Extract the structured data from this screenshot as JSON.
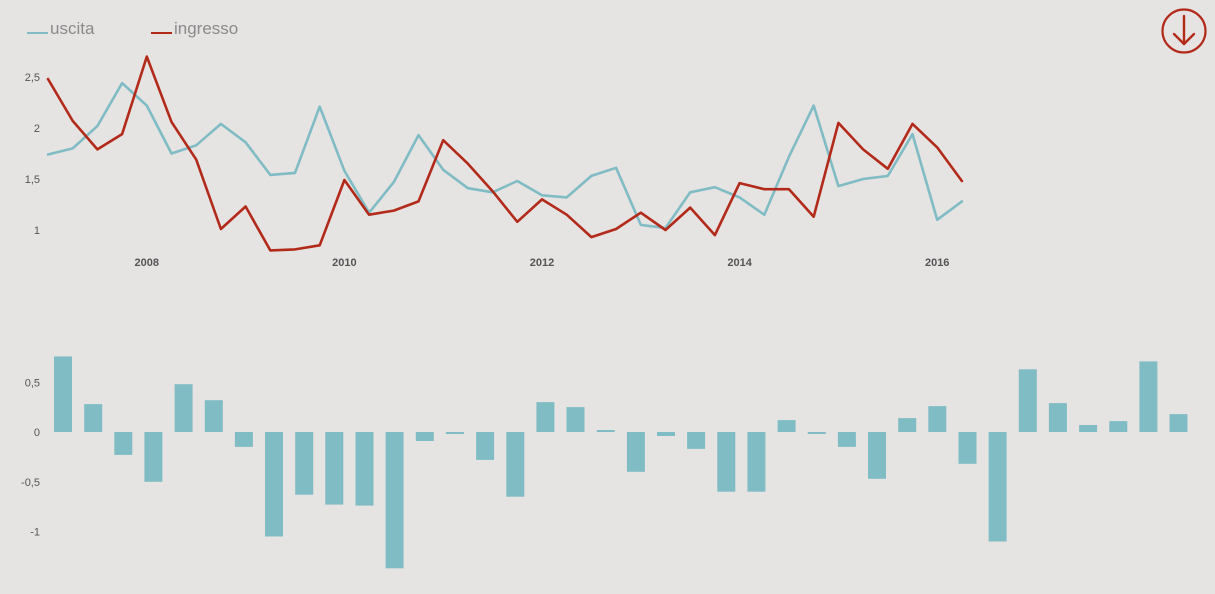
{
  "colors": {
    "uscita": "#80bcc4",
    "ingresso": "#b22a1a",
    "bar": "#80bcc4",
    "download": "#b22a1a"
  },
  "download_icon": "arrow-down-circle-icon",
  "chart_data": [
    {
      "type": "line",
      "legend": {
        "placement": "top-left"
      },
      "x_ticks": [
        {
          "x": 2008,
          "label": "2008"
        },
        {
          "x": 2010,
          "label": "2010"
        },
        {
          "x": 2012,
          "label": "2012"
        },
        {
          "x": 2014,
          "label": "2014"
        },
        {
          "x": 2016,
          "label": "2016"
        }
      ],
      "y_ticks": [
        {
          "v": 1,
          "label": "1"
        },
        {
          "v": 1.5,
          "label": "1,5"
        },
        {
          "v": 2,
          "label": "2"
        },
        {
          "v": 2.5,
          "label": "2,5"
        }
      ],
      "xlim": [
        2006.9,
        2016.25
      ],
      "ylim": [
        0.7,
        2.85
      ],
      "x": [
        2007.0,
        2007.25,
        2007.5,
        2007.75,
        2008.0,
        2008.25,
        2008.5,
        2008.75,
        2009.0,
        2009.25,
        2009.5,
        2009.75,
        2010.0,
        2010.25,
        2010.5,
        2010.75,
        2011.0,
        2011.25,
        2011.5,
        2011.75,
        2012.0,
        2012.25,
        2012.5,
        2012.75,
        2013.0,
        2013.25,
        2013.5,
        2013.75,
        2014.0,
        2014.25,
        2014.5,
        2014.75,
        2015.0,
        2015.25,
        2015.5,
        2015.75,
        2016.0,
        2016.25
      ],
      "series": [
        {
          "name": "uscita",
          "values": [
            1.74,
            1.8,
            2.02,
            2.44,
            2.22,
            1.75,
            1.83,
            2.04,
            1.86,
            1.54,
            1.56,
            2.21,
            1.58,
            1.17,
            1.47,
            1.93,
            1.59,
            1.41,
            1.37,
            1.48,
            1.34,
            1.32,
            1.53,
            1.61,
            1.05,
            1.02,
            1.37,
            1.42,
            1.32,
            1.15,
            1.72,
            2.22,
            1.43,
            1.5,
            1.53,
            1.94,
            1.1,
            1.28
          ]
        },
        {
          "name": "ingresso",
          "values": [
            2.48,
            2.07,
            1.79,
            1.94,
            2.7,
            2.06,
            1.69,
            1.01,
            1.23,
            0.8,
            0.81,
            0.85,
            1.49,
            1.15,
            1.19,
            1.28,
            1.88,
            1.65,
            1.38,
            1.08,
            1.3,
            1.15,
            0.93,
            1.01,
            1.17,
            1.0,
            1.22,
            0.95,
            1.46,
            1.4,
            1.4,
            1.13,
            2.05,
            1.79,
            1.6,
            2.04,
            1.81,
            1.48
          ]
        }
      ]
    },
    {
      "type": "bar",
      "ylim": [
        -1.4,
        0.8
      ],
      "y_ticks": [
        {
          "v": 0.5,
          "label": "0,5"
        },
        {
          "v": 0,
          "label": "0"
        },
        {
          "v": -0.5,
          "label": "-0,5"
        },
        {
          "v": -1,
          "label": "-1"
        }
      ],
      "x": [
        2007.0,
        2007.25,
        2007.5,
        2007.75,
        2008.0,
        2008.25,
        2008.5,
        2008.75,
        2009.0,
        2009.25,
        2009.5,
        2009.75,
        2010.0,
        2010.25,
        2010.5,
        2010.75,
        2011.0,
        2011.25,
        2011.5,
        2011.75,
        2012.0,
        2012.25,
        2012.5,
        2012.75,
        2013.0,
        2013.25,
        2013.5,
        2013.75,
        2014.0,
        2014.25,
        2014.5,
        2014.75,
        2015.0,
        2015.25,
        2015.5,
        2015.75,
        2016.0,
        2016.25
      ],
      "values": [
        0.76,
        0.28,
        -0.23,
        -0.5,
        0.48,
        0.32,
        -0.15,
        -1.05,
        -0.63,
        -0.73,
        -0.74,
        -1.37,
        -0.09,
        -0.02,
        -0.28,
        -0.65,
        0.3,
        0.25,
        0.02,
        -0.4,
        -0.04,
        -0.17,
        -0.6,
        -0.6,
        0.12,
        -0.02,
        -0.15,
        -0.47,
        0.14,
        0.26,
        -0.32,
        -1.1,
        0.63,
        0.29,
        0.07,
        0.11,
        0.71,
        0.18
      ]
    }
  ]
}
